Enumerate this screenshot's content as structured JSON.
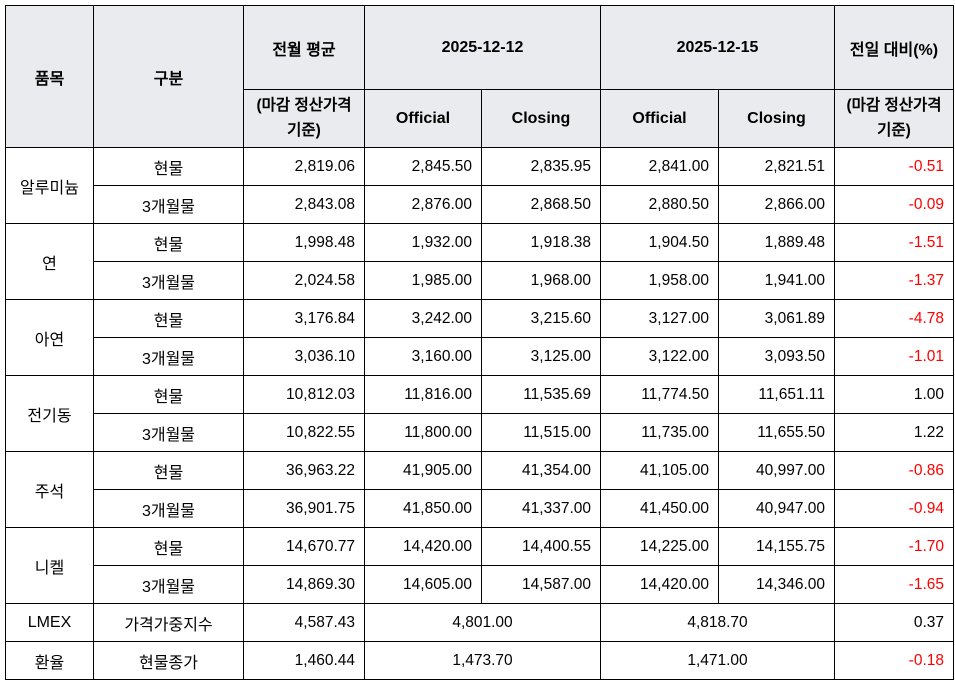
{
  "colors": {
    "negative_value": "#ff0000",
    "positive_value": "#000000",
    "header_background": "#e9ebee",
    "border": "#000000"
  },
  "header": {
    "item": "품목",
    "category": "구분",
    "prev_month_avg": "전월 평균",
    "prev_month_sub": "(마감 정산가격 기준)",
    "date1": "2025-12-12",
    "date2": "2025-12-15",
    "official1": "Official",
    "closing1": "Closing",
    "official2": "Official",
    "closing2": "Closing",
    "day_over_day": "전일 대비(%)",
    "day_over_day_sub": "(마감 정산가격 기준)"
  },
  "metals": [
    {
      "name": "알루미늄",
      "rows": [
        {
          "cat": "현물",
          "prev": "2,819.06",
          "o1": "2,845.50",
          "c1": "2,835.95",
          "o2": "2,841.00",
          "c2": "2,821.51",
          "chg": "-0.51"
        },
        {
          "cat": "3개월물",
          "prev": "2,843.08",
          "o1": "2,876.00",
          "c1": "2,868.50",
          "o2": "2,880.50",
          "c2": "2,866.00",
          "chg": "-0.09"
        }
      ]
    },
    {
      "name": "연",
      "rows": [
        {
          "cat": "현물",
          "prev": "1,998.48",
          "o1": "1,932.00",
          "c1": "1,918.38",
          "o2": "1,904.50",
          "c2": "1,889.48",
          "chg": "-1.51"
        },
        {
          "cat": "3개월물",
          "prev": "2,024.58",
          "o1": "1,985.00",
          "c1": "1,968.00",
          "o2": "1,958.00",
          "c2": "1,941.00",
          "chg": "-1.37"
        }
      ]
    },
    {
      "name": "아연",
      "rows": [
        {
          "cat": "현물",
          "prev": "3,176.84",
          "o1": "3,242.00",
          "c1": "3,215.60",
          "o2": "3,127.00",
          "c2": "3,061.89",
          "chg": "-4.78"
        },
        {
          "cat": "3개월물",
          "prev": "3,036.10",
          "o1": "3,160.00",
          "c1": "3,125.00",
          "o2": "3,122.00",
          "c2": "3,093.50",
          "chg": "-1.01"
        }
      ]
    },
    {
      "name": "전기동",
      "rows": [
        {
          "cat": "현물",
          "prev": "10,812.03",
          "o1": "11,816.00",
          "c1": "11,535.69",
          "o2": "11,774.50",
          "c2": "11,651.11",
          "chg": "1.00"
        },
        {
          "cat": "3개월물",
          "prev": "10,822.55",
          "o1": "11,800.00",
          "c1": "11,515.00",
          "o2": "11,735.00",
          "c2": "11,655.50",
          "chg": "1.22"
        }
      ]
    },
    {
      "name": "주석",
      "rows": [
        {
          "cat": "현물",
          "prev": "36,963.22",
          "o1": "41,905.00",
          "c1": "41,354.00",
          "o2": "41,105.00",
          "c2": "40,997.00",
          "chg": "-0.86"
        },
        {
          "cat": "3개월물",
          "prev": "36,901.75",
          "o1": "41,850.00",
          "c1": "41,337.00",
          "o2": "41,450.00",
          "c2": "40,947.00",
          "chg": "-0.94"
        }
      ]
    },
    {
      "name": "니켈",
      "rows": [
        {
          "cat": "현물",
          "prev": "14,670.77",
          "o1": "14,420.00",
          "c1": "14,400.55",
          "o2": "14,225.00",
          "c2": "14,155.75",
          "chg": "-1.70"
        },
        {
          "cat": "3개월물",
          "prev": "14,869.30",
          "o1": "14,605.00",
          "c1": "14,587.00",
          "o2": "14,420.00",
          "c2": "14,346.00",
          "chg": "-1.65"
        }
      ]
    }
  ],
  "summary": [
    {
      "name": "LMEX",
      "cat": "가격가중지수",
      "prev": "4,587.43",
      "d1": "4,801.00",
      "d2": "4,818.70",
      "chg": "0.37"
    },
    {
      "name": "환율",
      "cat": "현물종가",
      "prev": "1,460.44",
      "d1": "1,473.70",
      "d2": "1,471.00",
      "chg": "-0.18"
    }
  ]
}
